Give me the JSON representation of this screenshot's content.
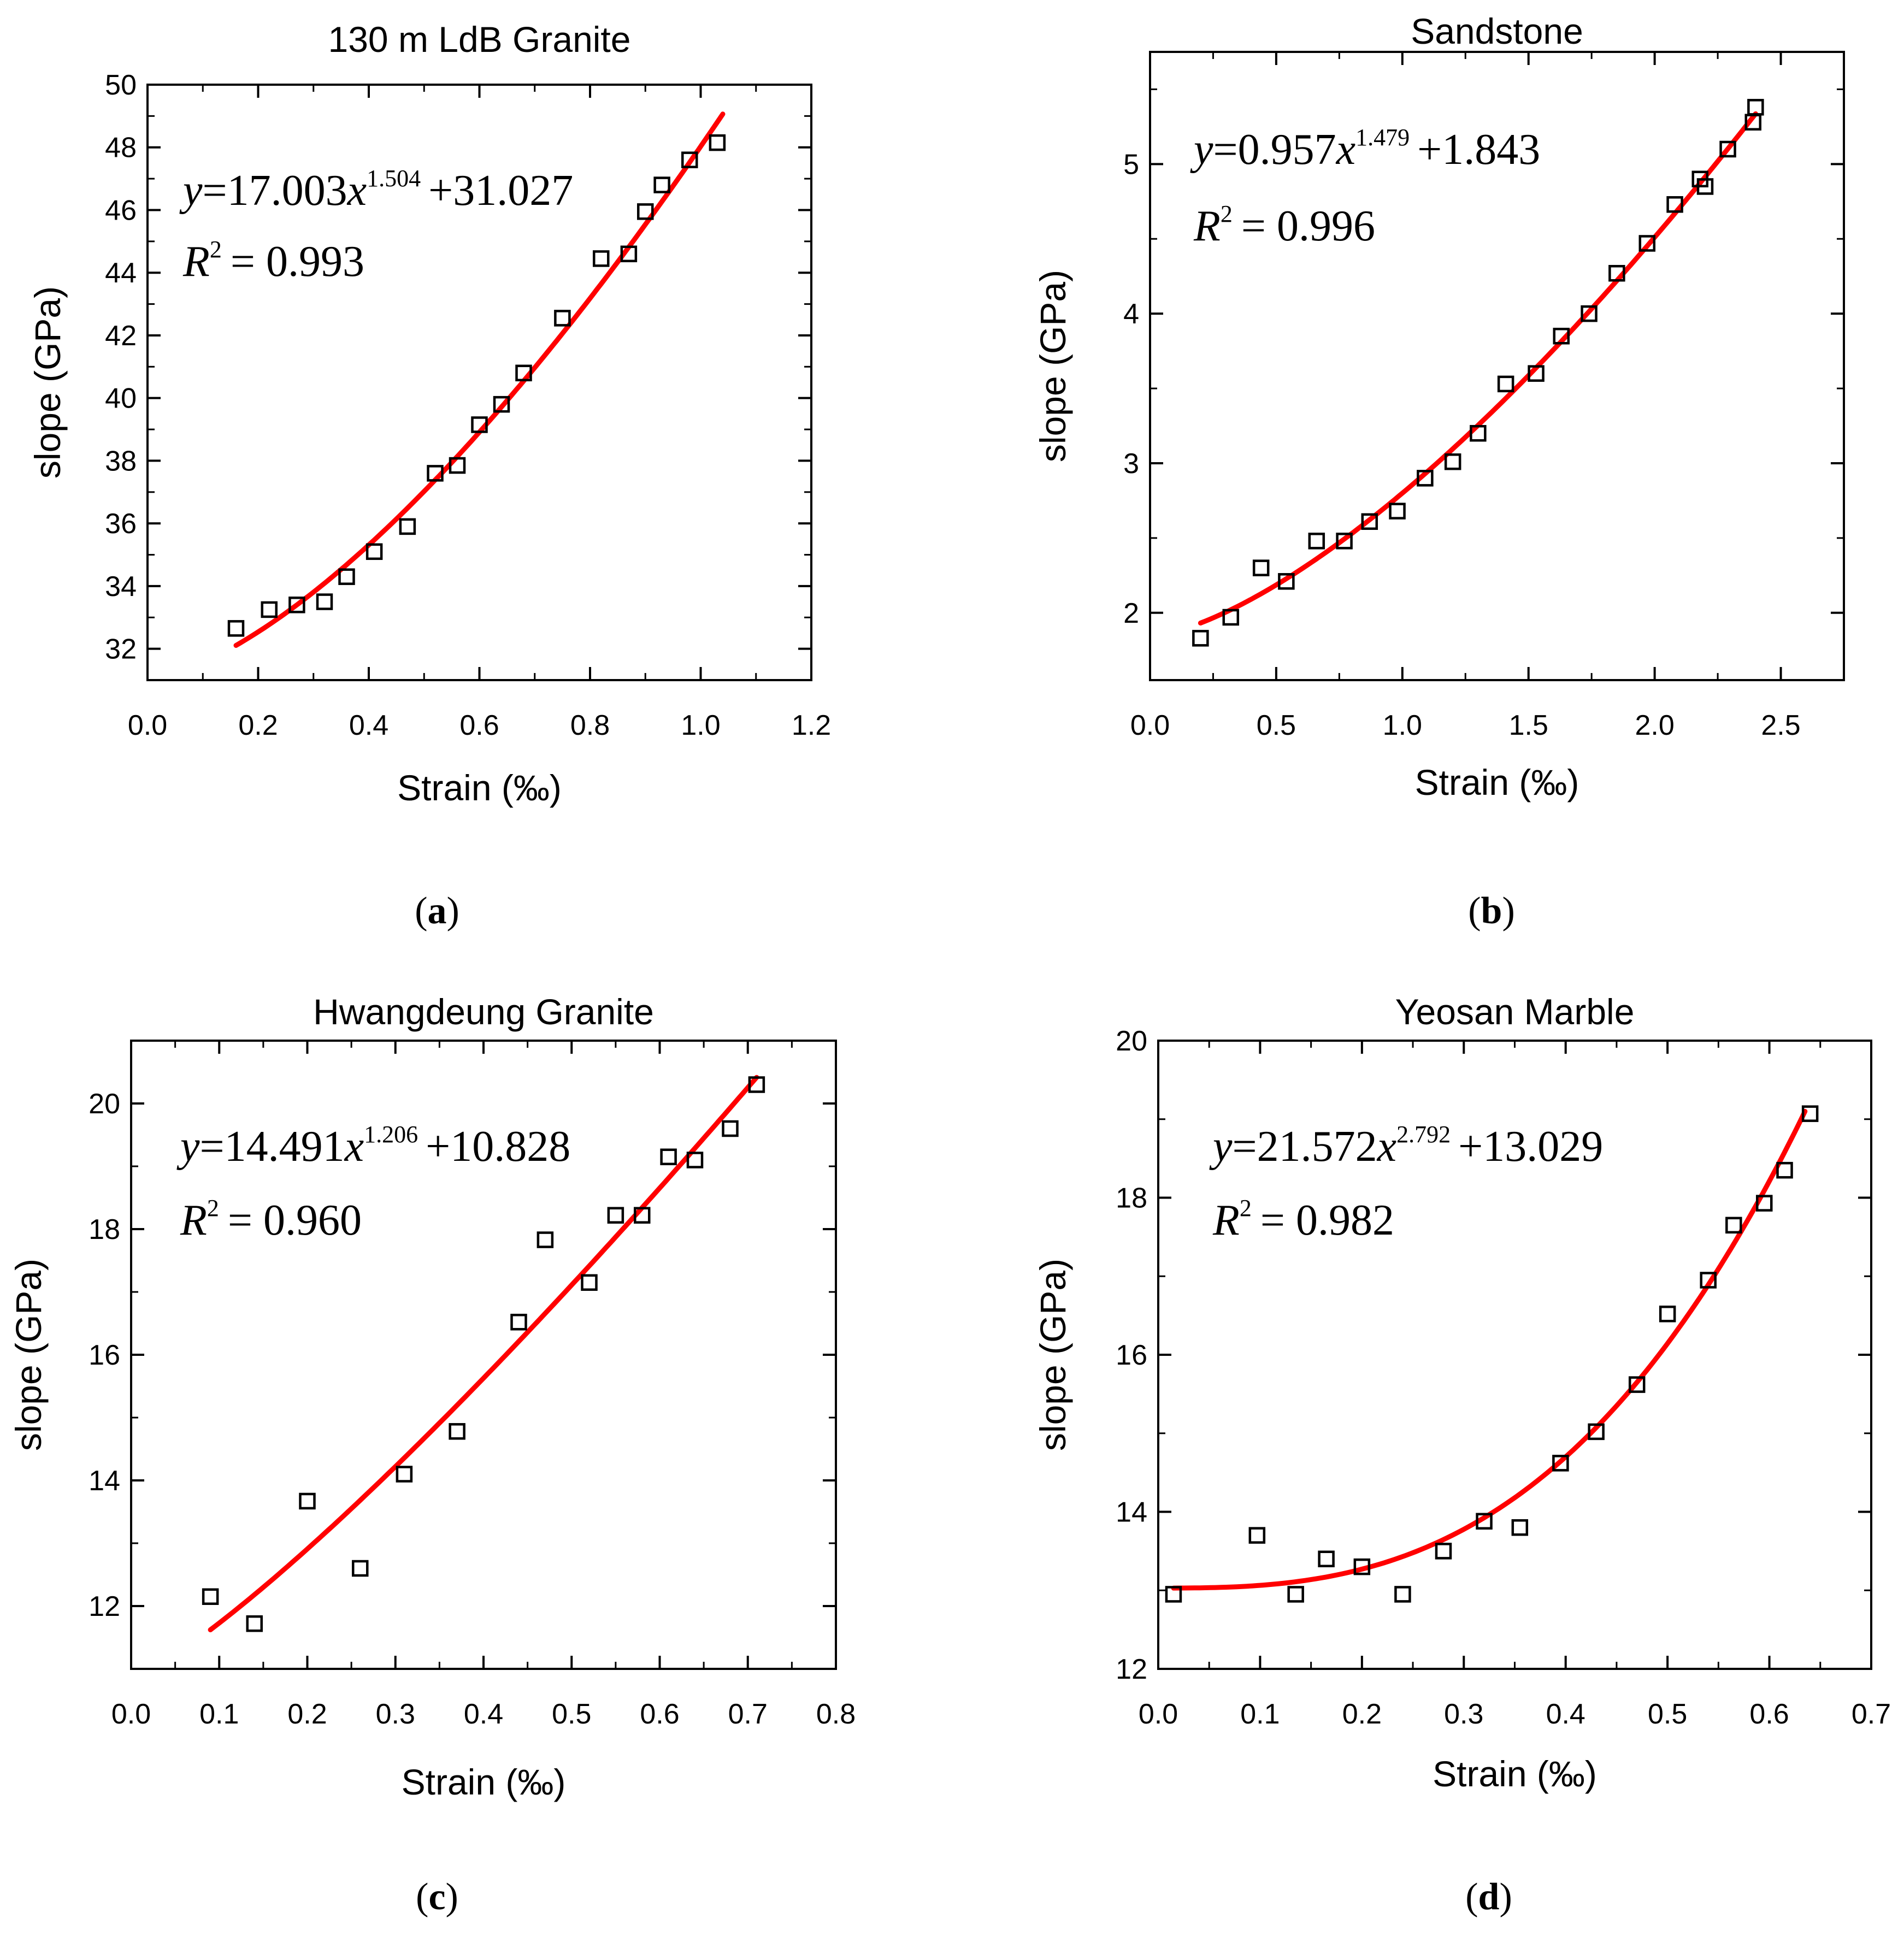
{
  "figure": {
    "panel_labels": [
      "(a)",
      "(b)",
      "(c)",
      "(d)"
    ]
  },
  "chart_data": [
    {
      "type": "scatter",
      "title": "130 m LdB Granite",
      "xlabel": "Strain (‰)",
      "ylabel": "slope (GPa)",
      "xlim": [
        0.0,
        1.2
      ],
      "ylim": [
        31.0,
        50.0
      ],
      "xticks": [
        0.0,
        0.2,
        0.4,
        0.6,
        0.8,
        1.0,
        1.2
      ],
      "xtick_labels": [
        "0.0",
        "0.2",
        "0.4",
        "0.6",
        "0.8",
        "1.0",
        "1.2"
      ],
      "yticks": [
        32,
        34,
        36,
        38,
        40,
        42,
        44,
        46,
        48,
        50
      ],
      "ytick_labels": [
        "32",
        "34",
        "36",
        "38",
        "40",
        "42",
        "44",
        "46",
        "48",
        "50"
      ],
      "fit": {
        "a": 17.003,
        "b": 1.504,
        "c": 31.027,
        "x_range": [
          0.16,
          1.04
        ],
        "color": "#ff0000"
      },
      "equation": {
        "prefix": "y",
        "coef": "17.003",
        "var": "x",
        "exp": "1.504",
        "const": "+31.027"
      },
      "r2": {
        "label": "R",
        "sup": "2",
        "value": "= 0.993"
      },
      "x": [
        0.16,
        0.22,
        0.27,
        0.32,
        0.36,
        0.41,
        0.47,
        0.52,
        0.56,
        0.6,
        0.64,
        0.68,
        0.75,
        0.82,
        0.87,
        0.9,
        0.93,
        0.98,
        1.03
      ],
      "y": [
        32.65,
        33.25,
        33.4,
        33.5,
        34.3,
        35.1,
        35.9,
        37.6,
        37.85,
        39.15,
        39.8,
        40.8,
        42.55,
        44.45,
        44.6,
        45.95,
        46.8,
        47.6,
        48.15
      ],
      "marker_color": "#000000"
    },
    {
      "type": "scatter",
      "title": "Sandstone",
      "xlabel": "Strain (‰)",
      "ylabel": "slope (GPa)",
      "xlim": [
        0.0,
        2.75
      ],
      "ylim": [
        1.55,
        5.75
      ],
      "xticks": [
        0.0,
        0.5,
        1.0,
        1.5,
        2.0,
        2.5
      ],
      "xtick_labels": [
        "0.0",
        "0.5",
        "1.0",
        "1.5",
        "2.0",
        "2.5"
      ],
      "yticks": [
        2,
        3,
        4,
        5
      ],
      "ytick_labels": [
        "2",
        "3",
        "4",
        "5"
      ],
      "fit": {
        "a": 0.957,
        "b": 1.479,
        "c": 1.843,
        "x_range": [
          0.2,
          2.4
        ],
        "color": "#ff0000"
      },
      "equation": {
        "prefix": "y",
        "coef": "0.957",
        "var": "x",
        "exp": "1.479",
        "const": "+1.843"
      },
      "r2": {
        "label": "R",
        "sup": "2",
        "value": "= 0.996"
      },
      "x": [
        0.2,
        0.32,
        0.44,
        0.54,
        0.66,
        0.77,
        0.87,
        0.98,
        1.09,
        1.2,
        1.3,
        1.41,
        1.53,
        1.63,
        1.74,
        1.85,
        1.97,
        2.08,
        2.18,
        2.2,
        2.29,
        2.39,
        2.4
      ],
      "y": [
        1.83,
        1.97,
        2.3,
        2.21,
        2.48,
        2.48,
        2.61,
        2.68,
        2.9,
        3.01,
        3.2,
        3.53,
        3.6,
        3.85,
        4.0,
        4.27,
        4.47,
        4.73,
        4.9,
        4.85,
        5.1,
        5.28,
        5.38
      ],
      "marker_color": "#000000"
    },
    {
      "type": "scatter",
      "title": "Hwangdeung Granite",
      "xlabel": "Strain (‰)",
      "ylabel": "slope (GPa)",
      "xlim": [
        0.0,
        0.8
      ],
      "ylim": [
        11.0,
        21.0
      ],
      "xticks": [
        0.0,
        0.1,
        0.2,
        0.3,
        0.4,
        0.5,
        0.6,
        0.7,
        0.8
      ],
      "xtick_labels": [
        "0.0",
        "0.1",
        "0.2",
        "0.3",
        "0.4",
        "0.5",
        "0.6",
        "0.7",
        "0.8"
      ],
      "yticks": [
        12,
        14,
        16,
        18,
        20
      ],
      "ytick_labels": [
        "12",
        "14",
        "16",
        "18",
        "20"
      ],
      "fit": {
        "a": 14.491,
        "b": 1.206,
        "c": 10.828,
        "x_range": [
          0.09,
          0.71
        ],
        "color": "#ff0000"
      },
      "equation": {
        "prefix": "y",
        "coef": "14.491",
        "var": "x",
        "exp": "1.206",
        "const": "+10.828"
      },
      "r2": {
        "label": "R",
        "sup": "2",
        "value": "= 0.960"
      },
      "x": [
        0.09,
        0.14,
        0.2,
        0.26,
        0.31,
        0.37,
        0.44,
        0.47,
        0.52,
        0.55,
        0.58,
        0.61,
        0.64,
        0.68,
        0.71
      ],
      "y": [
        12.15,
        11.72,
        13.67,
        12.6,
        14.1,
        14.78,
        16.52,
        17.83,
        17.15,
        18.22,
        18.22,
        19.15,
        19.1,
        19.6,
        20.3
      ],
      "marker_color": "#000000"
    },
    {
      "type": "scatter",
      "title": "Yeosan Marble",
      "xlabel": "Strain (‰)",
      "ylabel": "slope (GPa)",
      "xlim": [
        0.0,
        0.7
      ],
      "ylim": [
        12.0,
        20.0
      ],
      "xticks": [
        0.0,
        0.1,
        0.2,
        0.3,
        0.4,
        0.5,
        0.6,
        0.7
      ],
      "xtick_labels": [
        "0.0",
        "0.1",
        "0.2",
        "0.3",
        "0.4",
        "0.5",
        "0.6",
        "0.7"
      ],
      "yticks": [
        12,
        14,
        16,
        18,
        20
      ],
      "ytick_labels": [
        "12",
        "14",
        "16",
        "18",
        "20"
      ],
      "fit": {
        "a": 21.572,
        "b": 2.792,
        "c": 13.029,
        "x_range": [
          0.015,
          0.635
        ],
        "color": "#ff0000"
      },
      "equation": {
        "prefix": "y",
        "coef": "21.572",
        "var": "x",
        "exp": "2.792",
        "const": "+13.029"
      },
      "r2": {
        "label": "R",
        "sup": "2",
        "value": "= 0.982"
      },
      "x": [
        0.015,
        0.097,
        0.135,
        0.165,
        0.2,
        0.24,
        0.28,
        0.32,
        0.355,
        0.395,
        0.43,
        0.47,
        0.5,
        0.54,
        0.565,
        0.595,
        0.615,
        0.64
      ],
      "y": [
        12.95,
        13.7,
        12.95,
        13.4,
        13.3,
        12.95,
        13.5,
        13.88,
        13.8,
        14.62,
        15.02,
        15.62,
        16.52,
        16.95,
        17.65,
        17.93,
        18.35,
        19.07
      ],
      "marker_color": "#000000"
    }
  ]
}
